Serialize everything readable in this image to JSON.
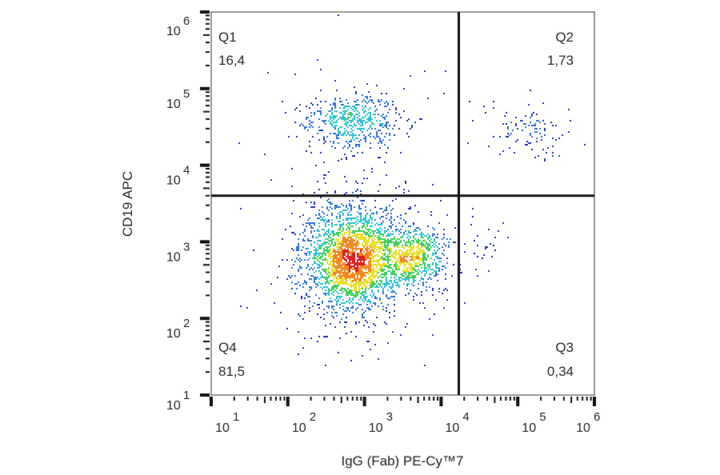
{
  "chart_data": {
    "type": "scatter",
    "subtype": "flow-cytometry-dot-plot",
    "xlabel": "IgG (Fab) PE-Cy™7",
    "ylabel": "CD19 APC",
    "xscale": "log",
    "yscale": "log",
    "xlim": [
      10,
      1000000
    ],
    "ylim": [
      10,
      1000000
    ],
    "x_tick_labels": [
      {
        "base": "10",
        "exp": "1",
        "value": 10
      },
      {
        "base": "10",
        "exp": "2",
        "value": 100
      },
      {
        "base": "10",
        "exp": "3",
        "value": 1000
      },
      {
        "base": "10",
        "exp": "4",
        "value": 10000
      },
      {
        "base": "10",
        "exp": "5",
        "value": 100000
      },
      {
        "base": "10",
        "exp": "6",
        "value": 1000000
      }
    ],
    "y_tick_labels": [
      {
        "base": "10",
        "exp": "1",
        "value": 10
      },
      {
        "base": "10",
        "exp": "2",
        "value": 100
      },
      {
        "base": "10",
        "exp": "3",
        "value": 1000
      },
      {
        "base": "10",
        "exp": "4",
        "value": 10000
      },
      {
        "base": "10",
        "exp": "5",
        "value": 100000
      },
      {
        "base": "10",
        "exp": "6",
        "value": 1000000
      }
    ],
    "gates": {
      "x": 17000,
      "y": 4000
    },
    "quadrants": [
      {
        "name": "Q1",
        "value": "16,4",
        "position": "top-left"
      },
      {
        "name": "Q2",
        "value": "1,73",
        "position": "top-right"
      },
      {
        "name": "Q3",
        "value": "0,34",
        "position": "bottom-right"
      },
      {
        "name": "Q4",
        "value": "81,5",
        "position": "bottom-left"
      }
    ],
    "populations": [
      {
        "quadrant": "Q1",
        "x_center": 700,
        "y_center": 38000,
        "x_spread_decades": 0.3,
        "y_spread_decades": 0.19,
        "events": 550
      },
      {
        "quadrant": "Q2",
        "x_center": 120000,
        "y_center": 30000,
        "x_spread_decades": 0.25,
        "y_spread_decades": 0.16,
        "events": 110
      },
      {
        "quadrant": "Q4",
        "x_center": 650,
        "y_center": 600,
        "x_spread_decades": 0.3,
        "y_spread_decades": 0.33,
        "events": 2600
      },
      {
        "quadrant": "Q4",
        "x_center": 4200,
        "y_center": 650,
        "x_spread_decades": 0.22,
        "y_spread_decades": 0.2,
        "events": 800
      },
      {
        "quadrant": "Q3",
        "x_center": 35000,
        "y_center": 900,
        "x_spread_decades": 0.15,
        "y_spread_decades": 0.2,
        "events": 25
      }
    ],
    "color_scale": [
      "#1f2fbf",
      "#2f6fd8",
      "#2cc0d0",
      "#3fcf5a",
      "#e8e030",
      "#f08a20",
      "#e02020"
    ],
    "grid": false,
    "legend": "none"
  }
}
